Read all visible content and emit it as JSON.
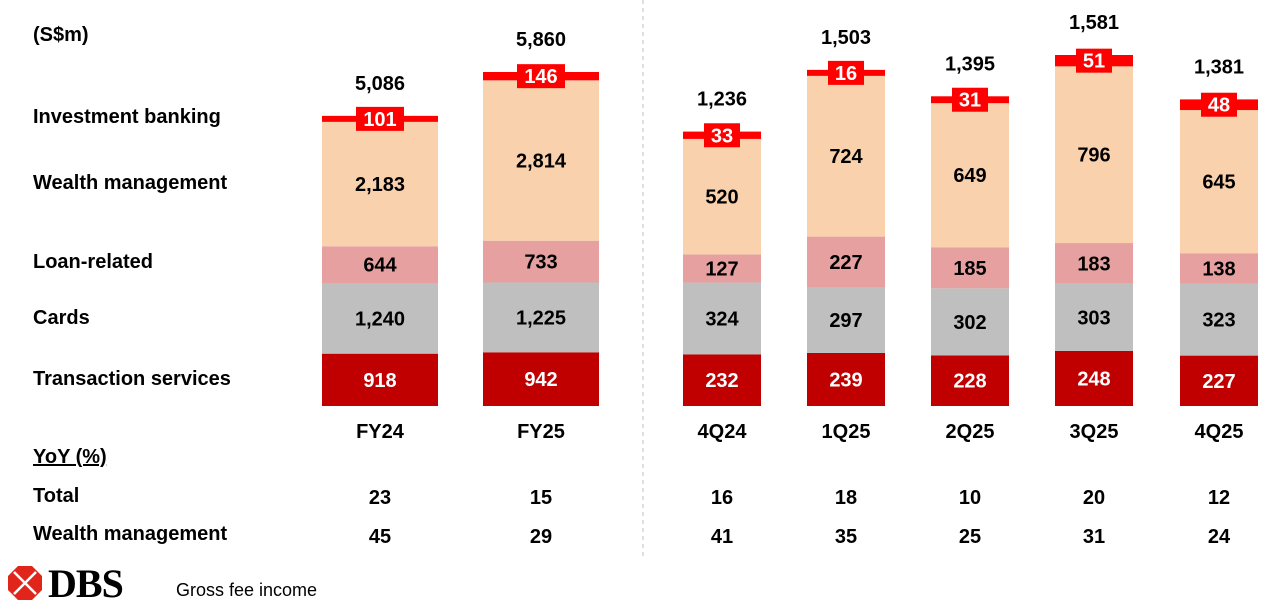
{
  "chart_data": {
    "type": "bar",
    "stacked": true,
    "unit_label": "(S$m)",
    "categories": [
      "FY24",
      "FY25",
      "4Q24",
      "1Q25",
      "2Q25",
      "3Q25",
      "4Q25"
    ],
    "groups": [
      {
        "categories": [
          "FY24",
          "FY25"
        ]
      },
      {
        "categories": [
          "4Q24",
          "1Q25",
          "2Q25",
          "3Q25",
          "4Q25"
        ]
      }
    ],
    "series": [
      {
        "name": "Transaction services",
        "color": "#C00000",
        "values": [
          918,
          942,
          232,
          239,
          228,
          248,
          227
        ]
      },
      {
        "name": "Cards",
        "color": "#BFBFBF",
        "values": [
          1240,
          1225,
          324,
          297,
          302,
          303,
          323
        ]
      },
      {
        "name": "Loan-related",
        "color": "#E6A0A0",
        "values": [
          644,
          733,
          127,
          227,
          185,
          183,
          138
        ]
      },
      {
        "name": "Wealth management",
        "color": "#F9D1AD",
        "values": [
          2183,
          2814,
          520,
          724,
          649,
          796,
          645
        ]
      },
      {
        "name": "Investment banking",
        "color": "#FF0000",
        "values": [
          101,
          146,
          33,
          16,
          31,
          51,
          48
        ]
      }
    ],
    "totals": [
      "5,086",
      "5,860",
      "1,236",
      "1,503",
      "1,395",
      "1,581",
      "1,381"
    ],
    "totals_numeric": [
      5086,
      5860,
      1236,
      1503,
      1395,
      1581,
      1381
    ],
    "value_labels": [
      [
        "918",
        "942",
        "232",
        "239",
        "228",
        "248",
        "227"
      ],
      [
        "1,240",
        "1,225",
        "324",
        "297",
        "302",
        "303",
        "323"
      ],
      [
        "644",
        "733",
        "127",
        "227",
        "185",
        "183",
        "138"
      ],
      [
        "2,183",
        "2,814",
        "520",
        "724",
        "649",
        "796",
        "645"
      ],
      [
        "101",
        "146",
        "33",
        "16",
        "31",
        "51",
        "48"
      ]
    ],
    "legend_placement": "left",
    "grid": false
  },
  "yoy": {
    "heading": "YoY (%)",
    "rows": [
      {
        "label": "Total",
        "values": [
          "23",
          "15",
          "16",
          "18",
          "10",
          "20",
          "12"
        ]
      },
      {
        "label": "Wealth management",
        "values": [
          "45",
          "29",
          "41",
          "35",
          "25",
          "31",
          "24"
        ]
      }
    ]
  },
  "footer": {
    "brand": "DBS",
    "caption": "Gross fee income",
    "brand_color": "#E0251B"
  }
}
